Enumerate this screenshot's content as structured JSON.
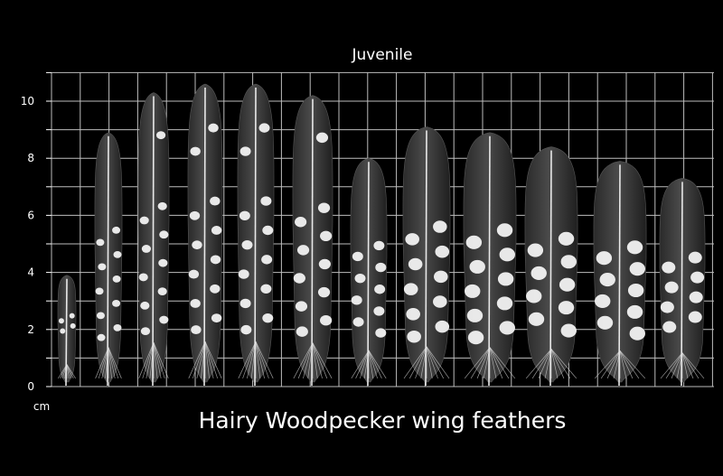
{
  "header": {
    "title": "Juvenile"
  },
  "caption": "Hairy Woodpecker wing feathers",
  "scale": {
    "unit": "cm",
    "ticks": [
      "0",
      "2",
      "4",
      "6",
      "8",
      "10"
    ],
    "range_cm": [
      0,
      11
    ]
  },
  "feathers": {
    "count": 12,
    "lengths_cm": [
      3.9,
      8.9,
      10.3,
      10.6,
      10.6,
      10.2,
      8.0,
      9.1,
      8.9,
      8.4,
      7.9,
      7.3
    ]
  },
  "colors": {
    "background": "#000000",
    "grid": "#bdbdbd",
    "feather": "#3a3a3a",
    "spot": "#f2f2f2",
    "text": "#ffffff"
  }
}
